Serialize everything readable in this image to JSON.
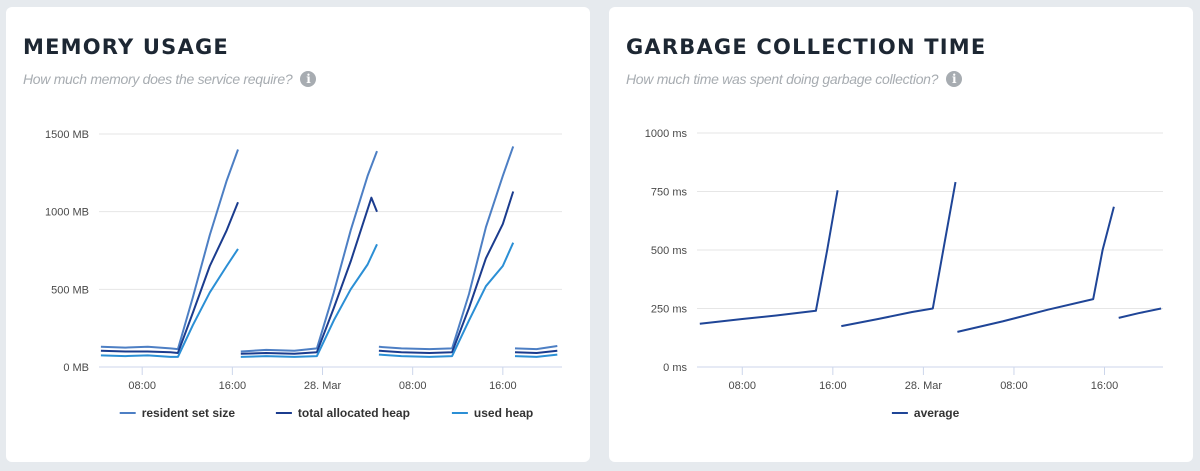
{
  "chart_data": [
    {
      "type": "line",
      "title": "MEMORY USAGE",
      "subtitle": "How much memory does the service require?",
      "info_icon": "info-circle-icon",
      "yunit": "MB",
      "ylim": [
        0,
        1500
      ],
      "yticks": [
        "0 MB",
        "500 MB",
        "1000 MB",
        "1500 MB"
      ],
      "ytick_values": [
        0,
        500,
        1000,
        1500
      ],
      "xlim": [
        "27 Mar 04:10",
        "28 Mar 21:15"
      ],
      "xticks": [
        {
          "t": "27 Mar 08:00",
          "label": "08:00"
        },
        {
          "t": "27 Mar 16:00",
          "label": "16:00"
        },
        {
          "t": "28 Mar 00:00",
          "label": "28. Mar"
        },
        {
          "t": "28 Mar 08:00",
          "label": "08:00"
        },
        {
          "t": "28 Mar 16:00",
          "label": "16:00"
        }
      ],
      "grid": true,
      "legend": "bottom-center",
      "series": [
        {
          "name": "resident set size",
          "color": "#4d7fc4",
          "segments": [
            [
              [
                "27 Mar 04:20",
                130
              ],
              [
                "27 Mar 06:30",
                125
              ],
              [
                "27 Mar 08:30",
                130
              ],
              [
                "27 Mar 10:30",
                120
              ],
              [
                "27 Mar 11:10",
                115
              ],
              [
                "27 Mar 12:30",
                450
              ],
              [
                "27 Mar 14:00",
                850
              ],
              [
                "27 Mar 15:30",
                1200
              ],
              [
                "27 Mar 16:30",
                1400
              ]
            ],
            [
              [
                "27 Mar 16:45",
                100
              ],
              [
                "27 Mar 19:00",
                110
              ],
              [
                "27 Mar 21:30",
                105
              ],
              [
                "27 Mar 23:30",
                120
              ],
              [
                "28 Mar 01:00",
                480
              ],
              [
                "28 Mar 02:30",
                880
              ],
              [
                "28 Mar 04:00",
                1230
              ],
              [
                "28 Mar 04:50",
                1390
              ]
            ],
            [
              [
                "28 Mar 05:00",
                130
              ],
              [
                "28 Mar 07:00",
                120
              ],
              [
                "28 Mar 09:30",
                115
              ],
              [
                "28 Mar 11:30",
                120
              ],
              [
                "28 Mar 13:00",
                470
              ],
              [
                "28 Mar 14:30",
                900
              ],
              [
                "28 Mar 16:00",
                1230
              ],
              [
                "28 Mar 16:55",
                1420
              ]
            ],
            [
              [
                "28 Mar 17:05",
                120
              ],
              [
                "28 Mar 19:00",
                115
              ],
              [
                "28 Mar 20:50",
                135
              ]
            ]
          ]
        },
        {
          "name": "total allocated heap",
          "color": "#1b3c8e",
          "segments": [
            [
              [
                "27 Mar 04:20",
                105
              ],
              [
                "27 Mar 06:30",
                100
              ],
              [
                "27 Mar 08:30",
                100
              ],
              [
                "27 Mar 10:30",
                95
              ],
              [
                "27 Mar 11:10",
                90
              ],
              [
                "27 Mar 12:30",
                350
              ],
              [
                "27 Mar 14:00",
                650
              ],
              [
                "27 Mar 15:30",
                880
              ],
              [
                "27 Mar 16:30",
                1060
              ]
            ],
            [
              [
                "27 Mar 16:45",
                85
              ],
              [
                "27 Mar 19:00",
                90
              ],
              [
                "27 Mar 21:30",
                85
              ],
              [
                "27 Mar 23:30",
                95
              ],
              [
                "28 Mar 01:00",
                380
              ],
              [
                "28 Mar 02:30",
                680
              ],
              [
                "28 Mar 04:20",
                1090
              ],
              [
                "28 Mar 04:50",
                1000
              ]
            ],
            [
              [
                "28 Mar 05:00",
                105
              ],
              [
                "28 Mar 07:00",
                95
              ],
              [
                "28 Mar 09:30",
                90
              ],
              [
                "28 Mar 11:30",
                95
              ],
              [
                "28 Mar 13:00",
                380
              ],
              [
                "28 Mar 14:30",
                700
              ],
              [
                "28 Mar 16:00",
                920
              ],
              [
                "28 Mar 16:55",
                1130
              ]
            ],
            [
              [
                "28 Mar 17:05",
                95
              ],
              [
                "28 Mar 19:00",
                90
              ],
              [
                "28 Mar 20:50",
                105
              ]
            ]
          ]
        },
        {
          "name": "used heap",
          "color": "#2b8fd5",
          "segments": [
            [
              [
                "27 Mar 04:20",
                75
              ],
              [
                "27 Mar 06:30",
                70
              ],
              [
                "27 Mar 08:30",
                75
              ],
              [
                "27 Mar 10:30",
                65
              ],
              [
                "27 Mar 11:10",
                65
              ],
              [
                "27 Mar 12:30",
                270
              ],
              [
                "27 Mar 14:00",
                480
              ],
              [
                "27 Mar 15:30",
                650
              ],
              [
                "27 Mar 16:30",
                760
              ]
            ],
            [
              [
                "27 Mar 16:45",
                65
              ],
              [
                "27 Mar 19:00",
                70
              ],
              [
                "27 Mar 21:30",
                65
              ],
              [
                "27 Mar 23:30",
                70
              ],
              [
                "28 Mar 01:00",
                300
              ],
              [
                "28 Mar 02:30",
                500
              ],
              [
                "28 Mar 04:00",
                660
              ],
              [
                "28 Mar 04:50",
                790
              ]
            ],
            [
              [
                "28 Mar 05:00",
                80
              ],
              [
                "28 Mar 07:00",
                70
              ],
              [
                "28 Mar 09:30",
                65
              ],
              [
                "28 Mar 11:30",
                70
              ],
              [
                "28 Mar 13:00",
                300
              ],
              [
                "28 Mar 14:30",
                520
              ],
              [
                "28 Mar 16:00",
                650
              ],
              [
                "28 Mar 16:55",
                800
              ]
            ],
            [
              [
                "28 Mar 17:05",
                70
              ],
              [
                "28 Mar 19:00",
                65
              ],
              [
                "28 Mar 20:50",
                80
              ]
            ]
          ]
        }
      ]
    },
    {
      "type": "line",
      "title": "GARBAGE COLLECTION TIME",
      "subtitle": "How much time was spent doing garbage collection?",
      "info_icon": "info-circle-icon",
      "yunit": "ms",
      "ylim": [
        0,
        1000
      ],
      "yticks": [
        "0 ms",
        "250 ms",
        "500 ms",
        "750 ms",
        "1000 ms"
      ],
      "ytick_values": [
        0,
        250,
        500,
        750,
        1000
      ],
      "xlim": [
        "27 Mar 04:00",
        "28 Mar 21:10"
      ],
      "xticks": [
        {
          "t": "27 Mar 08:00",
          "label": "08:00"
        },
        {
          "t": "27 Mar 16:00",
          "label": "16:00"
        },
        {
          "t": "28 Mar 00:00",
          "label": "28. Mar"
        },
        {
          "t": "28 Mar 08:00",
          "label": "08:00"
        },
        {
          "t": "28 Mar 16:00",
          "label": "16:00"
        }
      ],
      "grid": true,
      "legend": "bottom-center",
      "series": [
        {
          "name": "average",
          "color": "#1f4597",
          "segments": [
            [
              [
                "27 Mar 04:15",
                185
              ],
              [
                "27 Mar 08:00",
                205
              ],
              [
                "27 Mar 11:00",
                220
              ],
              [
                "27 Mar 14:30",
                240
              ],
              [
                "27 Mar 15:30",
                500
              ],
              [
                "27 Mar 16:25",
                755
              ]
            ],
            [
              [
                "27 Mar 16:45",
                175
              ],
              [
                "27 Mar 20:00",
                205
              ],
              [
                "27 Mar 23:00",
                235
              ],
              [
                "28 Mar 00:50",
                250
              ],
              [
                "28 Mar 01:50",
                520
              ],
              [
                "28 Mar 02:50",
                790
              ]
            ],
            [
              [
                "28 Mar 03:00",
                150
              ],
              [
                "28 Mar 07:00",
                195
              ],
              [
                "28 Mar 11:00",
                245
              ],
              [
                "28 Mar 15:00",
                290
              ],
              [
                "28 Mar 15:50",
                500
              ],
              [
                "28 Mar 16:50",
                685
              ]
            ],
            [
              [
                "28 Mar 17:15",
                210
              ],
              [
                "28 Mar 19:00",
                230
              ],
              [
                "28 Mar 21:00",
                250
              ]
            ]
          ]
        }
      ]
    }
  ]
}
